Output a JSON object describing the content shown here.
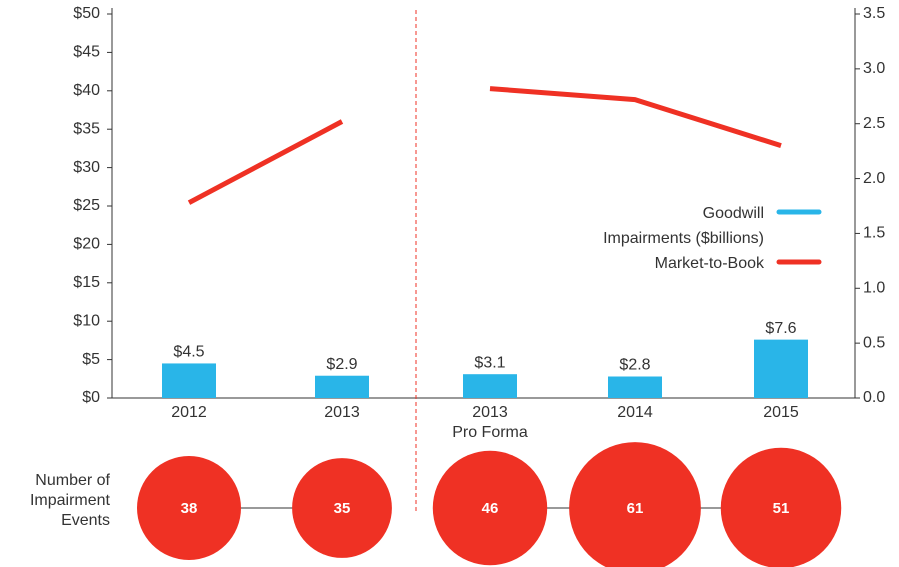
{
  "chart_data": {
    "type": "bar",
    "categories": [
      "2012",
      "2013",
      "2013\nPro Forma",
      "2014",
      "2015"
    ],
    "divider_after": 1,
    "ylim": [
      0,
      50
    ],
    "yticks": [
      {
        "value": 0,
        "label": "$0"
      },
      {
        "value": 5,
        "label": "$5"
      },
      {
        "value": 10,
        "label": "$10"
      },
      {
        "value": 15,
        "label": "$15"
      },
      {
        "value": 20,
        "label": "$20"
      },
      {
        "value": 25,
        "label": "$25"
      },
      {
        "value": 30,
        "label": "$30"
      },
      {
        "value": 35,
        "label": "$35"
      },
      {
        "value": 40,
        "label": "$40"
      },
      {
        "value": 45,
        "label": "$45"
      },
      {
        "value": 50,
        "label": "$50"
      }
    ],
    "y2lim": [
      0,
      3.5
    ],
    "y2ticks": [
      {
        "value": 0,
        "label": "0.0"
      },
      0.5,
      {
        "value": 1,
        "label": "1.0"
      },
      1.5,
      {
        "value": 2,
        "label": "2.0"
      },
      2.5,
      {
        "value": 3,
        "label": "3.0"
      },
      3.5
    ],
    "legend": "right",
    "series": [
      {
        "name": "Goodwill\nImpairments ($billions)",
        "color": "#29b5e8",
        "type": "bar",
        "values": [
          4.5,
          2.9,
          3.1,
          2.8,
          7.6
        ],
        "value_labels": [
          "$4.5",
          "$2.9",
          "$3.1",
          "$2.8",
          "$7.6"
        ]
      },
      {
        "name": "Market-to-Book",
        "color": "#ef3124",
        "type": "line",
        "axis": "y2",
        "values": [
          1.78,
          2.52,
          2.82,
          2.72,
          2.3
        ]
      }
    ],
    "bubbles": {
      "label": "Number of\nImpairment\nEvents",
      "color": "#ef3124",
      "values": [
        38,
        35,
        46,
        61,
        51
      ]
    }
  }
}
